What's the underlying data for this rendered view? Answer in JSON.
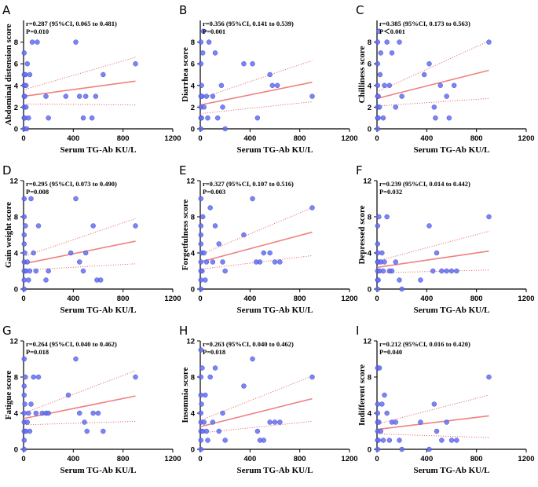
{
  "colors": {
    "point": "#6470f0",
    "point_stroke": "#2b34c8",
    "fit": "#f08080",
    "ci": "#e86464",
    "axis": "#000000"
  },
  "chart_data": [
    {
      "type": "scatter",
      "panel": "A",
      "ylabel": "Abdominal distension score",
      "xlabel": "Serum TG-Ab KU/L",
      "stat_line1": "r=0.287 (95%CI, 0.065 to 0.481)",
      "stat_line2": "P=0.010",
      "xlim": [
        0,
        1200
      ],
      "ylim": [
        0,
        10
      ],
      "yticks": [
        0,
        2,
        4,
        6,
        8
      ],
      "xticks": [
        0,
        400,
        800,
        1200
      ],
      "fit": [
        3.0,
        4.4
      ],
      "ci_lower": [
        2.3,
        2.2
      ],
      "ci_upper": [
        3.6,
        6.6
      ],
      "points": [
        [
          5,
          0
        ],
        [
          5,
          1
        ],
        [
          5,
          2
        ],
        [
          5,
          3
        ],
        [
          5,
          4
        ],
        [
          5,
          5
        ],
        [
          5,
          7
        ],
        [
          10,
          1
        ],
        [
          10,
          3
        ],
        [
          15,
          5
        ],
        [
          20,
          2
        ],
        [
          20,
          4
        ],
        [
          25,
          0
        ],
        [
          30,
          6
        ],
        [
          40,
          1
        ],
        [
          50,
          5
        ],
        [
          70,
          8
        ],
        [
          110,
          8
        ],
        [
          180,
          3
        ],
        [
          200,
          1
        ],
        [
          340,
          3
        ],
        [
          420,
          8
        ],
        [
          450,
          3
        ],
        [
          480,
          1
        ],
        [
          500,
          3
        ],
        [
          550,
          1
        ],
        [
          580,
          3
        ],
        [
          640,
          5
        ],
        [
          900,
          6
        ]
      ]
    },
    {
      "type": "scatter",
      "panel": "B",
      "ylabel": "Diarrhea score",
      "xlabel": "Serum TG-Ab KU/L",
      "stat_line1": "r=0.356 (95%CI, 0.141 to 0.539)",
      "stat_line2": "P=0.001",
      "xlim": [
        0,
        1200
      ],
      "ylim": [
        0,
        10
      ],
      "yticks": [
        0,
        2,
        4,
        6,
        8
      ],
      "xticks": [
        0,
        400,
        800,
        1200
      ],
      "fit": [
        2.2,
        4.3
      ],
      "ci_lower": [
        1.4,
        2.5
      ],
      "ci_upper": [
        2.8,
        6.3
      ],
      "points": [
        [
          5,
          0
        ],
        [
          5,
          1
        ],
        [
          5,
          2
        ],
        [
          5,
          3
        ],
        [
          5,
          6
        ],
        [
          5,
          8
        ],
        [
          10,
          1
        ],
        [
          10,
          4
        ],
        [
          15,
          3
        ],
        [
          20,
          7
        ],
        [
          25,
          9
        ],
        [
          30,
          2
        ],
        [
          50,
          3
        ],
        [
          60,
          1
        ],
        [
          70,
          8
        ],
        [
          100,
          3
        ],
        [
          120,
          7
        ],
        [
          140,
          1
        ],
        [
          170,
          4
        ],
        [
          180,
          2
        ],
        [
          200,
          0
        ],
        [
          350,
          6
        ],
        [
          420,
          6
        ],
        [
          460,
          1
        ],
        [
          560,
          5
        ],
        [
          580,
          4
        ],
        [
          620,
          4
        ],
        [
          900,
          3
        ]
      ]
    },
    {
      "type": "scatter",
      "panel": "C",
      "ylabel": "Chilliness score",
      "xlabel": "Serum TG-Ab KU/L",
      "stat_line1": "r=0.385 (95%CI, 0.173 to 0.563)",
      "stat_line2": "P＜0.001",
      "xlim": [
        0,
        1200
      ],
      "ylim": [
        0,
        10
      ],
      "yticks": [
        0,
        2,
        4,
        6,
        8
      ],
      "xticks": [
        0,
        400,
        800,
        1200
      ],
      "fit": [
        2.8,
        5.4
      ],
      "ci_lower": [
        2.1,
        2.8
      ],
      "ci_upper": [
        3.4,
        8.1
      ],
      "points": [
        [
          5,
          0
        ],
        [
          5,
          1
        ],
        [
          5,
          2
        ],
        [
          5,
          3
        ],
        [
          5,
          4
        ],
        [
          5,
          6
        ],
        [
          5,
          8
        ],
        [
          10,
          1
        ],
        [
          10,
          3
        ],
        [
          15,
          9
        ],
        [
          20,
          2
        ],
        [
          25,
          5
        ],
        [
          30,
          7
        ],
        [
          50,
          1
        ],
        [
          60,
          4
        ],
        [
          80,
          8
        ],
        [
          100,
          4
        ],
        [
          120,
          7
        ],
        [
          150,
          2
        ],
        [
          180,
          8
        ],
        [
          200,
          3
        ],
        [
          380,
          5
        ],
        [
          420,
          6
        ],
        [
          460,
          2
        ],
        [
          470,
          1
        ],
        [
          510,
          4
        ],
        [
          560,
          3
        ],
        [
          580,
          1
        ],
        [
          620,
          4
        ],
        [
          900,
          8
        ]
      ]
    },
    {
      "type": "scatter",
      "panel": "D",
      "ylabel": "Gain weight score",
      "xlabel": "Serum TG-Ab KU/L",
      "stat_line1": "r=0.295 (95%CI, 0.073 to 0.490)",
      "stat_line2": "P=0.008",
      "xlim": [
        0,
        1200
      ],
      "ylim": [
        0,
        12
      ],
      "yticks": [
        0,
        4,
        8,
        12
      ],
      "xticks": [
        0,
        400,
        800,
        1200
      ],
      "fit": [
        2.8,
        5.3
      ],
      "ci_lower": [
        2.1,
        2.8
      ],
      "ci_upper": [
        3.6,
        7.8
      ],
      "points": [
        [
          5,
          0
        ],
        [
          5,
          1
        ],
        [
          5,
          2
        ],
        [
          5,
          3
        ],
        [
          5,
          5
        ],
        [
          5,
          6
        ],
        [
          5,
          8
        ],
        [
          5,
          10
        ],
        [
          10,
          4
        ],
        [
          15,
          7
        ],
        [
          20,
          2
        ],
        [
          30,
          3
        ],
        [
          40,
          1
        ],
        [
          50,
          2
        ],
        [
          60,
          10
        ],
        [
          80,
          4
        ],
        [
          100,
          2
        ],
        [
          120,
          7
        ],
        [
          180,
          1
        ],
        [
          200,
          2
        ],
        [
          380,
          4
        ],
        [
          420,
          10
        ],
        [
          450,
          3
        ],
        [
          480,
          2
        ],
        [
          500,
          4
        ],
        [
          560,
          7
        ],
        [
          590,
          1
        ],
        [
          620,
          1
        ],
        [
          900,
          7
        ]
      ]
    },
    {
      "type": "scatter",
      "panel": "E",
      "ylabel": "Forgetfulness score",
      "xlabel": "Serum TG-Ab KU/L",
      "stat_line1": "r=0.327 (95%CI, 0.107 to 0.516)",
      "stat_line2": "P=0.003",
      "xlim": [
        0,
        1200
      ],
      "ylim": [
        0,
        12
      ],
      "yticks": [
        0,
        4,
        8,
        12
      ],
      "xticks": [
        0,
        400,
        800,
        1200
      ],
      "fit": [
        3.0,
        6.3
      ],
      "ci_lower": [
        2.2,
        3.7
      ],
      "ci_upper": [
        3.8,
        9.0
      ],
      "points": [
        [
          5,
          0
        ],
        [
          5,
          1
        ],
        [
          5,
          2
        ],
        [
          5,
          3
        ],
        [
          5,
          5
        ],
        [
          5,
          6
        ],
        [
          5,
          7
        ],
        [
          5,
          10
        ],
        [
          10,
          4
        ],
        [
          15,
          2
        ],
        [
          20,
          8
        ],
        [
          30,
          4
        ],
        [
          40,
          1
        ],
        [
          50,
          3
        ],
        [
          80,
          9
        ],
        [
          100,
          3
        ],
        [
          120,
          7
        ],
        [
          150,
          5
        ],
        [
          180,
          3
        ],
        [
          200,
          2
        ],
        [
          350,
          6
        ],
        [
          420,
          10
        ],
        [
          450,
          3
        ],
        [
          480,
          3
        ],
        [
          510,
          4
        ],
        [
          560,
          4
        ],
        [
          600,
          3
        ],
        [
          640,
          3
        ],
        [
          900,
          9
        ]
      ]
    },
    {
      "type": "scatter",
      "panel": "F",
      "ylabel": "Depressed score",
      "xlabel": "Serum TG-Ab KU/L",
      "stat_line1": "r=0.239 (95%CI, 0.014 to 0.442)",
      "stat_line2": "P=0.032",
      "xlim": [
        0,
        1200
      ],
      "ylim": [
        0,
        12
      ],
      "yticks": [
        0,
        4,
        8,
        12
      ],
      "xticks": [
        0,
        400,
        800,
        1200
      ],
      "fit": [
        2.4,
        4.2
      ],
      "ci_lower": [
        1.8,
        2.1
      ],
      "ci_upper": [
        3.1,
        6.4
      ],
      "points": [
        [
          5,
          0
        ],
        [
          5,
          1
        ],
        [
          5,
          2
        ],
        [
          5,
          3
        ],
        [
          5,
          4
        ],
        [
          5,
          5
        ],
        [
          5,
          7
        ],
        [
          10,
          1
        ],
        [
          10,
          3
        ],
        [
          15,
          8
        ],
        [
          20,
          2
        ],
        [
          30,
          3
        ],
        [
          40,
          4
        ],
        [
          50,
          2
        ],
        [
          60,
          3
        ],
        [
          80,
          8
        ],
        [
          100,
          2
        ],
        [
          120,
          2
        ],
        [
          150,
          3
        ],
        [
          180,
          1
        ],
        [
          200,
          0
        ],
        [
          350,
          1
        ],
        [
          420,
          7
        ],
        [
          450,
          2
        ],
        [
          480,
          4
        ],
        [
          520,
          2
        ],
        [
          560,
          2
        ],
        [
          600,
          2
        ],
        [
          640,
          2
        ],
        [
          900,
          8
        ]
      ]
    },
    {
      "type": "scatter",
      "panel": "G",
      "ylabel": "Fatigue score",
      "xlabel": "Serum TG-Ab KU/L",
      "stat_line1": "r=0.264 (95%CI, 0.040 to 0.462)",
      "stat_line2": "P=0.018",
      "xlim": [
        0,
        1200
      ],
      "ylim": [
        0,
        12
      ],
      "yticks": [
        0,
        4,
        8,
        12
      ],
      "xticks": [
        0,
        400,
        800,
        1200
      ],
      "fit": [
        3.4,
        5.9
      ],
      "ci_lower": [
        2.7,
        3.1
      ],
      "ci_upper": [
        4.0,
        8.7
      ],
      "points": [
        [
          5,
          0
        ],
        [
          5,
          1
        ],
        [
          5,
          2
        ],
        [
          5,
          3
        ],
        [
          5,
          4
        ],
        [
          5,
          6
        ],
        [
          5,
          7
        ],
        [
          5,
          10
        ],
        [
          10,
          5
        ],
        [
          15,
          8
        ],
        [
          20,
          2
        ],
        [
          30,
          3
        ],
        [
          40,
          4
        ],
        [
          50,
          2
        ],
        [
          60,
          5
        ],
        [
          80,
          8
        ],
        [
          100,
          4
        ],
        [
          120,
          8
        ],
        [
          150,
          4
        ],
        [
          180,
          4
        ],
        [
          200,
          4
        ],
        [
          360,
          6
        ],
        [
          420,
          10
        ],
        [
          450,
          4
        ],
        [
          490,
          3
        ],
        [
          510,
          2
        ],
        [
          560,
          4
        ],
        [
          600,
          4
        ],
        [
          640,
          2
        ],
        [
          900,
          8
        ]
      ]
    },
    {
      "type": "scatter",
      "panel": "H",
      "ylabel": "Insomnia score",
      "xlabel": "Serum TG-Ab KU/L",
      "stat_line1": "r=0.263 (95%CI, 0.040 to 0.462)",
      "stat_line2": "P=0.018",
      "xlim": [
        0,
        1200
      ],
      "ylim": [
        0,
        12
      ],
      "yticks": [
        0,
        4,
        8,
        12
      ],
      "xticks": [
        0,
        400,
        800,
        1200
      ],
      "fit": [
        2.5,
        5.6
      ],
      "ci_lower": [
        1.8,
        3.1
      ],
      "ci_upper": [
        3.2,
        8.1
      ],
      "points": [
        [
          5,
          0
        ],
        [
          5,
          1
        ],
        [
          5,
          2
        ],
        [
          5,
          3
        ],
        [
          5,
          4
        ],
        [
          5,
          6
        ],
        [
          5,
          8
        ],
        [
          5,
          11
        ],
        [
          10,
          5
        ],
        [
          15,
          9
        ],
        [
          20,
          2
        ],
        [
          30,
          3
        ],
        [
          40,
          6
        ],
        [
          50,
          2
        ],
        [
          60,
          1
        ],
        [
          80,
          8
        ],
        [
          100,
          3
        ],
        [
          120,
          9
        ],
        [
          150,
          2
        ],
        [
          180,
          4
        ],
        [
          200,
          1
        ],
        [
          350,
          7
        ],
        [
          420,
          10
        ],
        [
          460,
          2
        ],
        [
          480,
          1
        ],
        [
          510,
          1
        ],
        [
          560,
          3
        ],
        [
          600,
          3
        ],
        [
          640,
          3
        ],
        [
          900,
          8
        ]
      ]
    },
    {
      "type": "scatter",
      "panel": "I",
      "ylabel": "Indifferent score",
      "xlabel": "Serum TG-Ab KU/L",
      "stat_line1": "r=0.212 (95%CI, 0.016 to 0.420)",
      "stat_line2": "P=0.040",
      "xlim": [
        0,
        1200
      ],
      "ylim": [
        0,
        12
      ],
      "yticks": [
        0,
        4,
        8,
        12
      ],
      "xticks": [
        0,
        400,
        800,
        1200
      ],
      "fit": [
        2.2,
        3.7
      ],
      "ci_lower": [
        1.7,
        1.3
      ],
      "ci_upper": [
        2.8,
        6.0
      ],
      "points": [
        [
          5,
          0
        ],
        [
          5,
          1
        ],
        [
          5,
          2
        ],
        [
          5,
          3
        ],
        [
          5,
          4
        ],
        [
          5,
          5
        ],
        [
          5,
          9
        ],
        [
          10,
          1
        ],
        [
          15,
          3
        ],
        [
          20,
          9
        ],
        [
          30,
          2
        ],
        [
          40,
          5
        ],
        [
          50,
          1
        ],
        [
          60,
          6
        ],
        [
          80,
          4
        ],
        [
          100,
          1
        ],
        [
          120,
          3
        ],
        [
          150,
          3
        ],
        [
          180,
          1
        ],
        [
          200,
          0
        ],
        [
          350,
          3
        ],
        [
          420,
          0
        ],
        [
          460,
          5
        ],
        [
          480,
          2
        ],
        [
          520,
          1
        ],
        [
          560,
          3
        ],
        [
          600,
          1
        ],
        [
          640,
          1
        ],
        [
          900,
          8
        ]
      ]
    }
  ]
}
